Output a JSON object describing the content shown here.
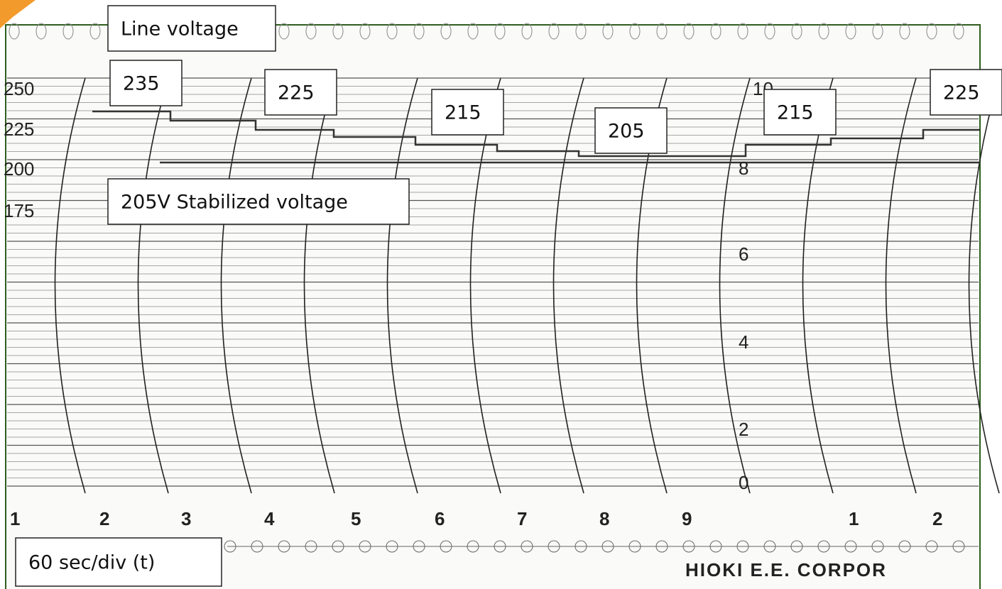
{
  "annotations": {
    "line_voltage": "Line voltage",
    "readings": [
      "235",
      "225",
      "215",
      "205",
      "215",
      "225"
    ],
    "stabilized": "205V Stabilized voltage",
    "time_base": "60 sec/div (t)"
  },
  "paper": {
    "left_scale": [
      "250",
      "225",
      "200",
      "175"
    ],
    "right_scale": [
      "10",
      "8",
      "6",
      "4",
      "2",
      "0"
    ],
    "time_marks": [
      "1",
      "2",
      "3",
      "4",
      "5",
      "6",
      "7",
      "8",
      "9",
      "1",
      "2"
    ],
    "brand": "HIOKI E.E. CORPOR"
  }
}
